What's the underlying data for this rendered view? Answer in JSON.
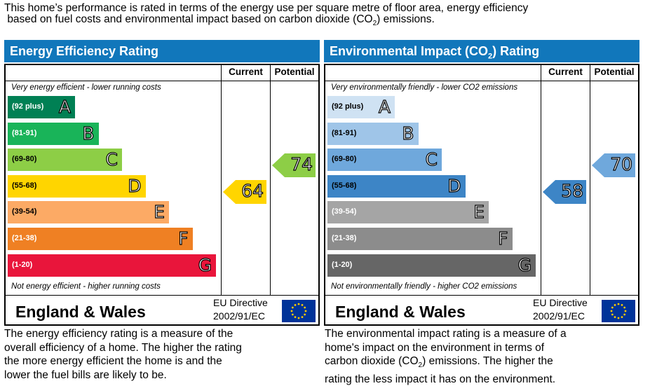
{
  "intro": {
    "line1": "This home’s performance is rated in terms of the energy use per square metre of floor area, energy efficiency",
    "line2a": "based on fuel costs and environmental impact based on carbon dioxide (CO",
    "line2sub": "2",
    "line2b": ") emissions."
  },
  "chart_data": [
    {
      "type": "bar",
      "title": "Energy Efficiency Rating",
      "columns": [
        "Current",
        "Potential"
      ],
      "top_note": "Very energy efficient - lower running costs",
      "bottom_note": "Not energy efficient - higher running costs",
      "bands": [
        {
          "letter": "A",
          "range": "(92 plus)",
          "color": "#008054"
        },
        {
          "letter": "B",
          "range": "(81-91)",
          "color": "#19b459"
        },
        {
          "letter": "C",
          "range": "(69-80)",
          "color": "#8dce46"
        },
        {
          "letter": "D",
          "range": "(55-68)",
          "color": "#ffd500"
        },
        {
          "letter": "E",
          "range": "(39-54)",
          "color": "#fcaa65"
        },
        {
          "letter": "F",
          "range": "(21-38)",
          "color": "#ef8023"
        },
        {
          "letter": "G",
          "range": "(1-20)",
          "color": "#e9153b"
        }
      ],
      "current": {
        "value": "64",
        "band": "D",
        "color": "#ffd500"
      },
      "potential": {
        "value": "74",
        "band": "C",
        "color": "#8dce46"
      },
      "footer_region": "England & Wales",
      "footer_directive_line1": "EU Directive",
      "footer_directive_line2": "2002/91/EC"
    },
    {
      "type": "bar",
      "title_main": "Environmental Impact (CO",
      "title_sub": "2",
      "title_end": ") Rating",
      "columns": [
        "Current",
        "Potential"
      ],
      "top_note": "Very environmentally friendly - lower CO2 emissions",
      "bottom_note": "Not environmentally friendly - higher CO2 emissions",
      "bands": [
        {
          "letter": "A",
          "range": "(92 plus)",
          "color": "#cfe2f3"
        },
        {
          "letter": "B",
          "range": "(81-91)",
          "color": "#9fc5e8"
        },
        {
          "letter": "C",
          "range": "(69-80)",
          "color": "#6fa8dc"
        },
        {
          "letter": "D",
          "range": "(55-68)",
          "color": "#3d85c6"
        },
        {
          "letter": "E",
          "range": "(39-54)",
          "color": "#a5a5a5"
        },
        {
          "letter": "F",
          "range": "(21-38)",
          "color": "#8c8c8c"
        },
        {
          "letter": "G",
          "range": "(1-20)",
          "color": "#666666"
        }
      ],
      "current": {
        "value": "58",
        "band": "D",
        "color": "#3d85c6"
      },
      "potential": {
        "value": "70",
        "band": "C",
        "color": "#6fa8dc"
      },
      "footer_region": "England & Wales",
      "footer_directive_line1": "EU Directive",
      "footer_directive_line2": "2002/91/EC"
    }
  ],
  "desc_energy": {
    "l1": "The energy efficiency rating is a measure of the",
    "l2": "overall efficiency of a home. The higher the rating",
    "l3": "the more energy efficient the home is and the",
    "l4": "lower the fuel bills are likely to be."
  },
  "desc_env": {
    "l1": "The environmental impact rating is a measure of a",
    "l2": "home's impact on the environment in terms of",
    "l3a": "carbon dioxide (CO",
    "l3sub": "2",
    "l3b": ") emissions. The higher the",
    "l4": "rating the less impact it has on the environment."
  }
}
